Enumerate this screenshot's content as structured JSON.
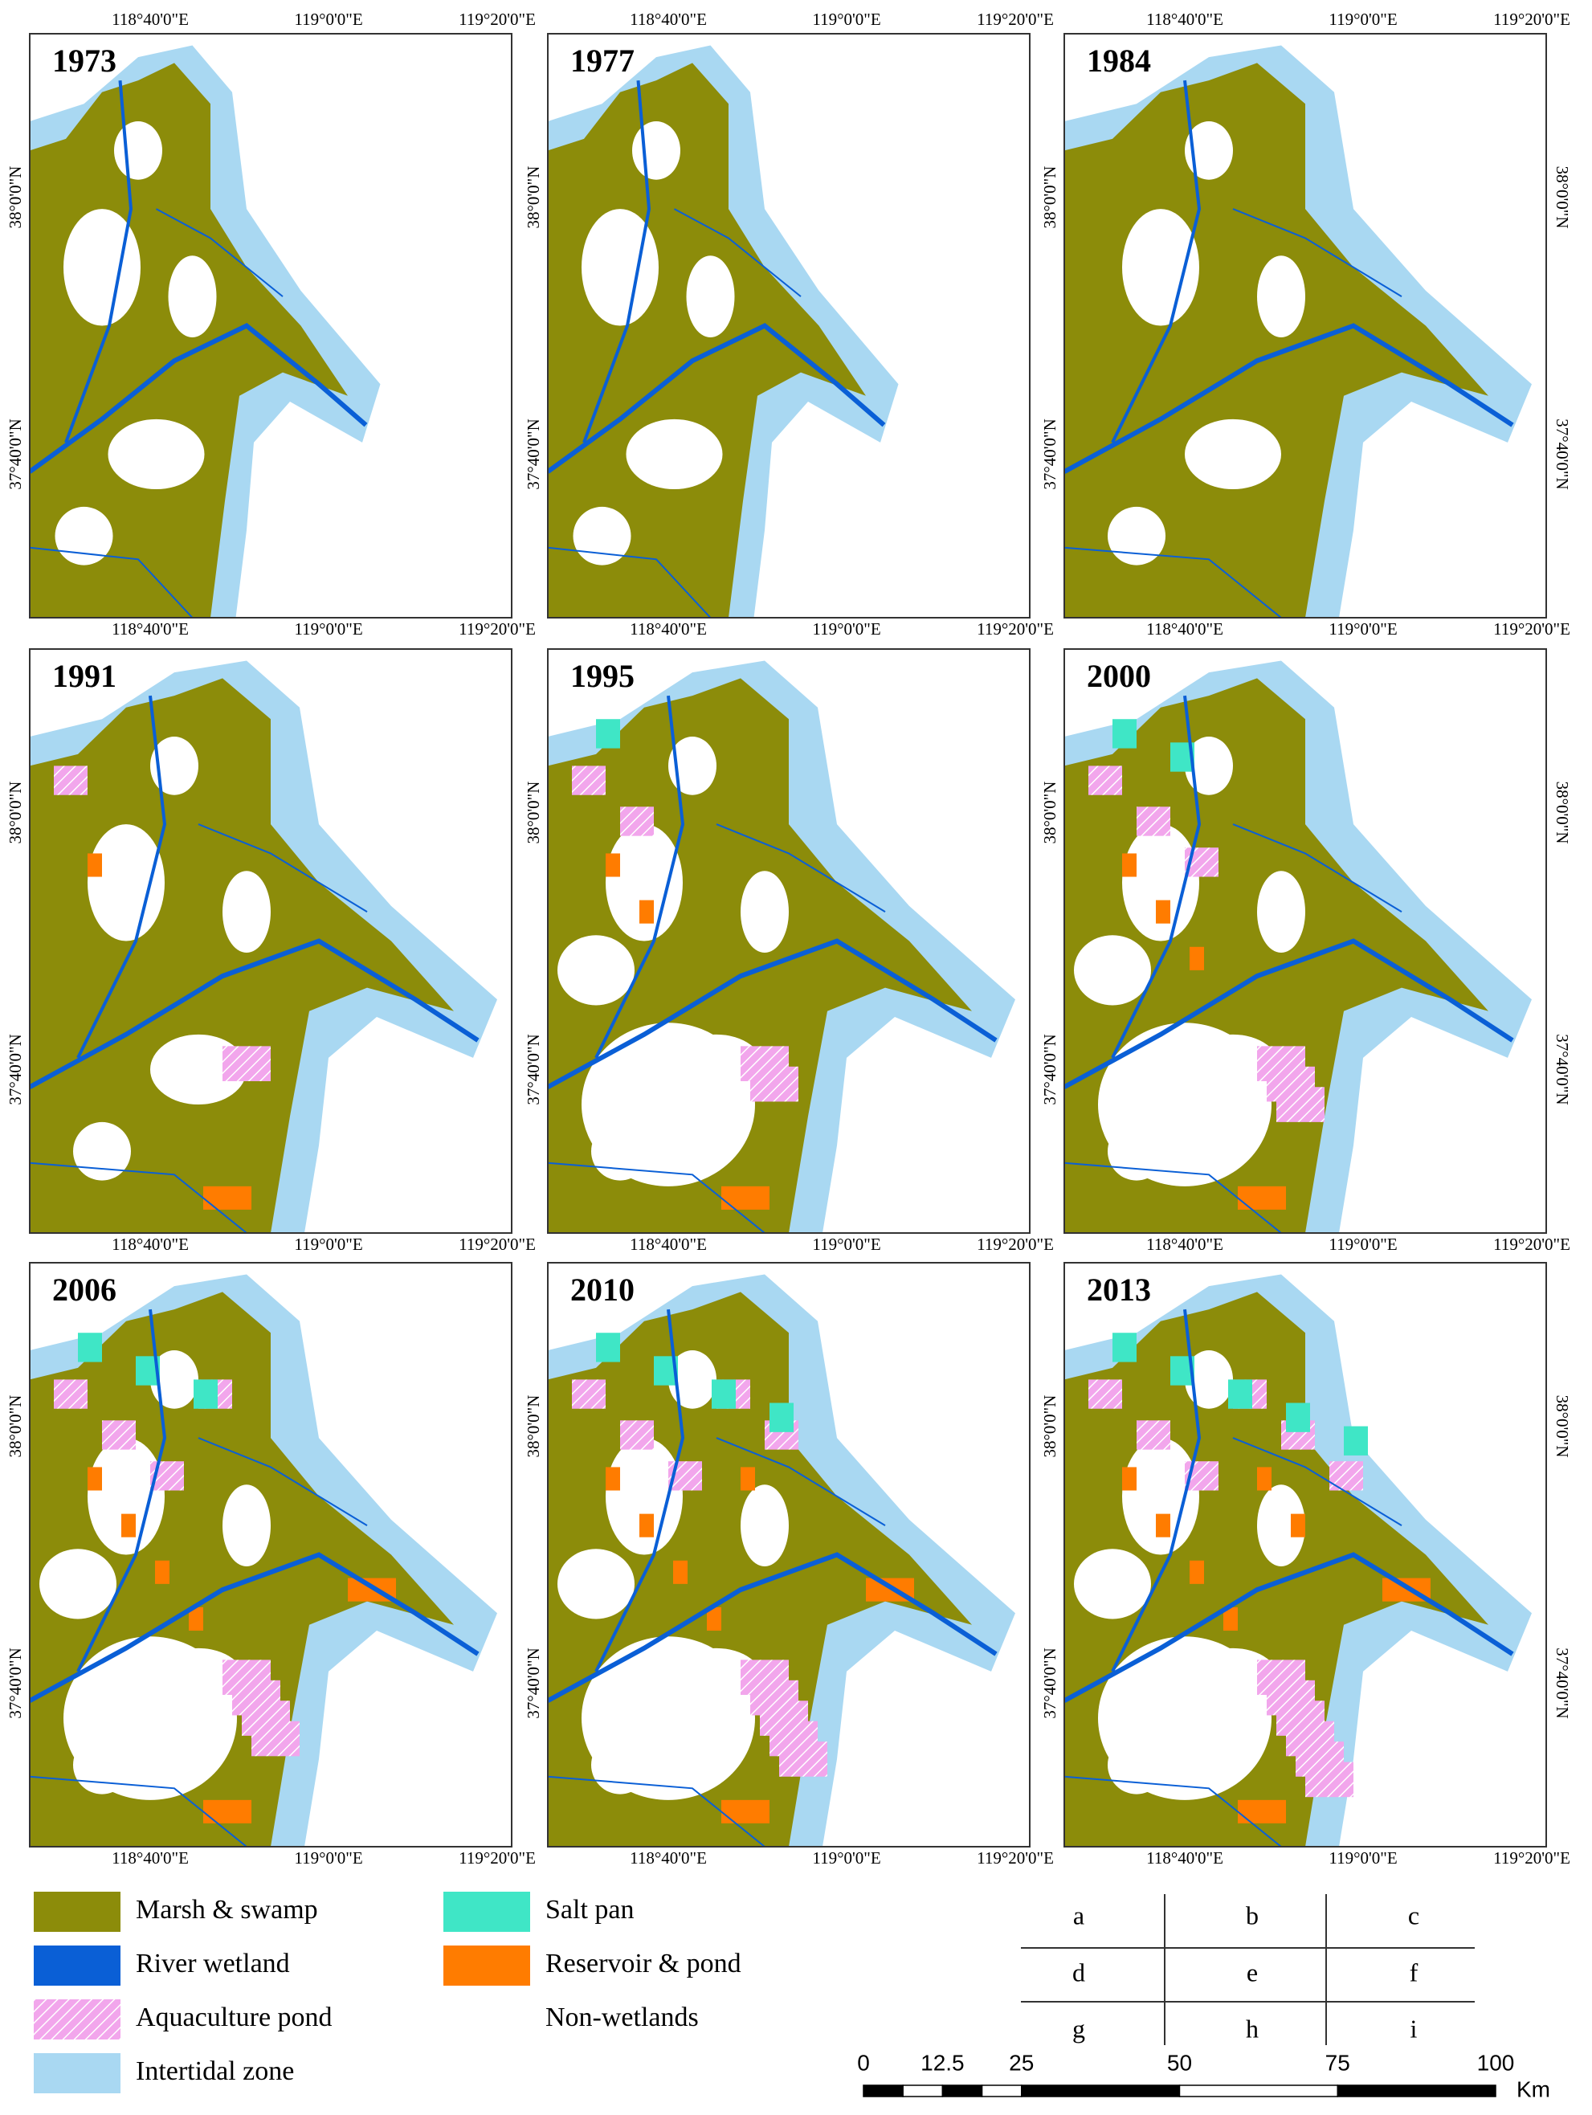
{
  "panels": [
    {
      "label": "1973"
    },
    {
      "label": "1977"
    },
    {
      "label": "1984"
    },
    {
      "label": "1991"
    },
    {
      "label": "1995"
    },
    {
      "label": "2000"
    },
    {
      "label": "2006"
    },
    {
      "label": "2010"
    },
    {
      "label": "2013"
    }
  ],
  "longitude_labels": [
    "118°40'0\"E",
    "119°0'0\"E",
    "119°20'0\"E"
  ],
  "latitude_labels": [
    "38°0'0\"N",
    "37°40'0\"N"
  ],
  "legend": [
    {
      "label": "Marsh & swamp",
      "color": "#8c8c0a"
    },
    {
      "label": "River wetland",
      "color": "#0a5fd6"
    },
    {
      "label": "Aquaculture pond",
      "color": "#f2a6ec"
    },
    {
      "label": "Intertidal zone",
      "color": "#a9d8f2"
    },
    {
      "label": "Salt pan",
      "color": "#3fe6c6"
    },
    {
      "label": "Reservoir & pond",
      "color": "#ff7c00"
    },
    {
      "label": "Non-wetlands",
      "color": "#ffffff"
    }
  ],
  "layout_key": [
    [
      "a",
      "b",
      "c"
    ],
    [
      "d",
      "e",
      "f"
    ],
    [
      "g",
      "h",
      "i"
    ]
  ],
  "scale_bar": {
    "ticks": [
      0,
      12.5,
      25,
      50,
      75,
      100
    ],
    "unit": "Km"
  }
}
